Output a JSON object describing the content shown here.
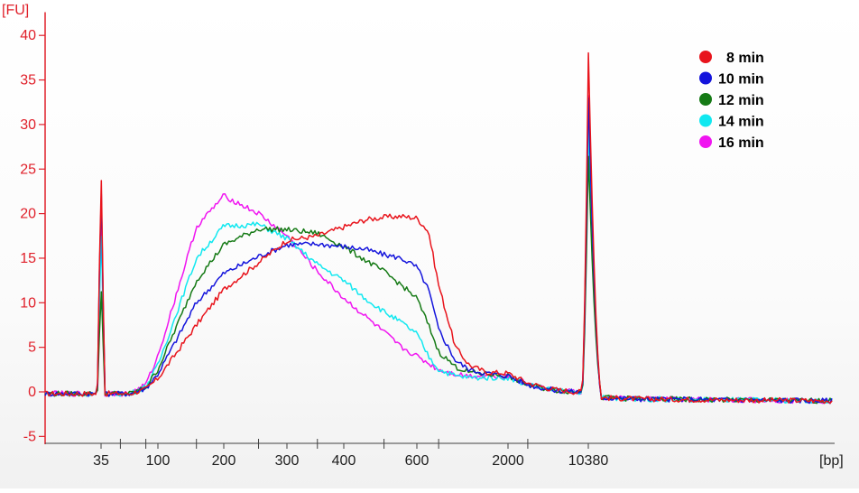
{
  "chart_data": {
    "type": "line",
    "ylabel": "[FU]",
    "xlabel": "[bp]",
    "ylim": [
      -5,
      42
    ],
    "y_ticks": [
      -5,
      0,
      5,
      10,
      15,
      20,
      25,
      30,
      35,
      40
    ],
    "x_scale": "marker-aligned (electropherogram)",
    "x_tick_labels": [
      "35",
      "100",
      "200",
      "300",
      "400",
      "600",
      "2000",
      "10380"
    ],
    "x_tick_values": [
      35,
      100,
      200,
      300,
      400,
      600,
      2000,
      10380
    ],
    "grid": false,
    "legend_position": "top-right",
    "markers": [
      {
        "bp": 35,
        "peak_fu": 25.8
      },
      {
        "bp": 10380,
        "peak_fu": 38.5
      }
    ],
    "series": [
      {
        "name": "8 min",
        "color": "#e8141c",
        "marker_heights": [
          25.8,
          38.5
        ],
        "bp": [
          35,
          60,
          80,
          100,
          150,
          200,
          250,
          300,
          350,
          400,
          450,
          500,
          550,
          600,
          700,
          800,
          1000,
          1200,
          1500,
          2000,
          3000,
          5000,
          8000,
          10380,
          10400,
          12000,
          15000,
          20000
        ],
        "fu": [
          -0.2,
          -0.2,
          0.3,
          1.5,
          7.5,
          11.5,
          14.5,
          17,
          17.5,
          18.5,
          19.3,
          19.6,
          19.7,
          19.5,
          18,
          12,
          5,
          3,
          2.2,
          2.1,
          1,
          0.3,
          0,
          0,
          -0.6,
          -0.8,
          -0.9,
          -1
        ]
      },
      {
        "name": "10 min",
        "color": "#1414dc",
        "marker_heights": [
          24,
          33.5
        ],
        "bp": [
          35,
          60,
          80,
          100,
          150,
          200,
          250,
          300,
          350,
          400,
          450,
          500,
          550,
          600,
          700,
          800,
          1000,
          1200,
          1500,
          2000,
          3000,
          5000,
          8000,
          10380,
          10400,
          12000,
          15000,
          20000
        ],
        "fu": [
          -0.2,
          -0.2,
          0.4,
          2,
          10,
          13.3,
          15.2,
          16.5,
          16.6,
          16.3,
          16,
          15.4,
          15,
          14,
          11.5,
          7,
          3.5,
          2.5,
          2.1,
          1.8,
          0.8,
          0.2,
          0,
          0,
          -0.6,
          -0.8,
          -0.9,
          -1
        ]
      },
      {
        "name": "12 min",
        "color": "#157a15",
        "marker_heights": [
          12,
          27
        ],
        "bp": [
          35,
          60,
          80,
          100,
          150,
          200,
          250,
          300,
          350,
          400,
          450,
          500,
          550,
          600,
          700,
          800,
          1000,
          1200,
          1500,
          2000,
          3000,
          5000,
          8000,
          10380,
          10400,
          12000,
          15000,
          20000
        ],
        "fu": [
          -0.2,
          -0.2,
          0.5,
          2.5,
          12.5,
          16.5,
          18.3,
          18.2,
          17.8,
          16.3,
          14.8,
          13.5,
          12,
          10.5,
          7.5,
          4.5,
          2.8,
          2.2,
          2,
          1.8,
          0.8,
          0.2,
          0,
          0,
          -0.6,
          -0.8,
          -0.9,
          -1
        ]
      },
      {
        "name": "14 min",
        "color": "#10e8f0",
        "marker_heights": [
          18.5,
          30
        ],
        "bp": [
          35,
          60,
          80,
          100,
          150,
          200,
          250,
          300,
          350,
          400,
          450,
          500,
          550,
          600,
          700,
          800,
          1000,
          1200,
          1500,
          2000,
          3000,
          5000,
          8000,
          10380,
          10400,
          12000,
          15000,
          20000
        ],
        "fu": [
          -0.2,
          -0.2,
          0.6,
          3,
          15,
          18.6,
          18.8,
          17.2,
          14.3,
          12.5,
          10.5,
          9,
          7.8,
          6.5,
          4,
          2.5,
          1.8,
          1.6,
          1.6,
          1.6,
          0.8,
          0.2,
          0,
          0,
          -0.6,
          -0.8,
          -0.9,
          -1
        ]
      },
      {
        "name": "16 min",
        "color": "#f014f0",
        "marker_heights": [
          20,
          33.5
        ],
        "bp": [
          35,
          60,
          80,
          100,
          150,
          200,
          250,
          300,
          350,
          400,
          450,
          500,
          550,
          600,
          700,
          800,
          1000,
          1200,
          1500,
          2000,
          3000,
          5000,
          8000,
          10380,
          10400,
          12000,
          15000,
          20000
        ],
        "fu": [
          -0.2,
          -0.2,
          0.8,
          4,
          18.5,
          22,
          20,
          17.5,
          13.5,
          10.5,
          8.5,
          6.7,
          5,
          4,
          3.2,
          2.5,
          2,
          1.8,
          1.8,
          1.8,
          0.9,
          0.2,
          0,
          0,
          -0.6,
          -0.8,
          -0.9,
          -1
        ]
      }
    ]
  }
}
